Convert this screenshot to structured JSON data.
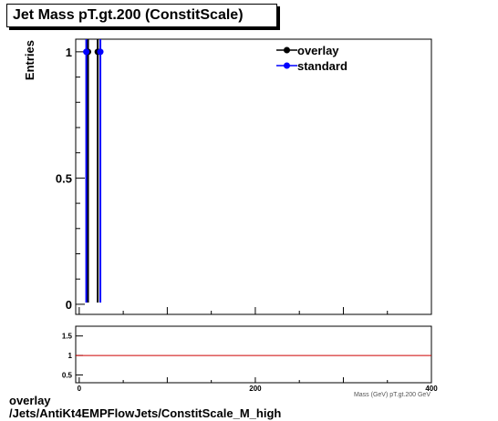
{
  "chart_data": [
    {
      "type": "scatter",
      "title": "Jet Mass pT.gt.200 (ConstitScale)",
      "ylabel": "Entries",
      "xlim": [
        -4,
        400
      ],
      "ylim": [
        -0.04,
        1.05
      ],
      "yticks": [
        0,
        0.5,
        1
      ],
      "ytick_labels": [
        "0",
        "0.5",
        "1"
      ],
      "legend_position": "top-right",
      "series": [
        {
          "name": "overlay",
          "color": "#000000",
          "points": [
            {
              "x": 10,
              "y": 1
            },
            {
              "x": 21,
              "y": 1
            }
          ]
        },
        {
          "name": "standard",
          "color": "#0000ff",
          "points": [
            {
              "x": 8,
              "y": 1
            },
            {
              "x": 24,
              "y": 1
            }
          ]
        }
      ]
    },
    {
      "type": "line",
      "xlim": [
        -4,
        400
      ],
      "ylim": [
        0.3,
        1.75
      ],
      "xticks": [
        0,
        200,
        400
      ],
      "xtick_labels": [
        "0",
        "200",
        "400"
      ],
      "yticks": [
        0.5,
        1,
        1.5
      ],
      "ytick_labels": [
        "0.5",
        "1",
        "1.5"
      ],
      "xlabel": "Mass (GeV) pT.gt.200 GeV",
      "reference_line": {
        "y": 1,
        "color": "#cc0000"
      }
    }
  ],
  "footer": {
    "line1": "overlay",
    "line2": "/Jets/AntiKt4EMPFlowJets/ConstitScale_M_high"
  }
}
